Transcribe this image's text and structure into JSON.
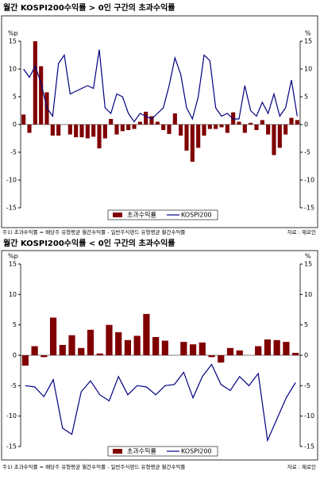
{
  "chart_data": [
    {
      "type": "bar_line",
      "title": "월간 KOSPI200수익률 > 0인 구간의 초과수익률",
      "y_label": "%p",
      "y2_label": "%",
      "categories": [
        null,
        null,
        null,
        null,
        null,
        null,
        null,
        null,
        null,
        null,
        null,
        null,
        null,
        null,
        null,
        null,
        null,
        null,
        null,
        null,
        null,
        null,
        null,
        null,
        null,
        null,
        null,
        null,
        null,
        null,
        null,
        null,
        null,
        null,
        null,
        null,
        null,
        null,
        null,
        null,
        null,
        null,
        null,
        null,
        null,
        null,
        null,
        null
      ],
      "series": [
        {
          "name": "초과수익률",
          "type": "bar",
          "color": "#800000",
          "values": [
            1.8,
            -1.5,
            15,
            10.5,
            5.8,
            -2,
            -2,
            0,
            -1.8,
            -2.3,
            -2.3,
            -2.5,
            -2.2,
            -4.3,
            -2.5,
            1,
            -1.8,
            -1.2,
            -1,
            -0.8,
            0.5,
            2.3,
            1.5,
            0.5,
            -1,
            -1.7,
            2,
            -2,
            -4.7,
            -6.7,
            -4.2,
            -2,
            -0.8,
            -0.8,
            -0.5,
            -1.5,
            2.2,
            0.5,
            -1.5,
            0.3,
            -1,
            0.8,
            -1.8,
            -5.5,
            -4.2,
            -1.8,
            1.2,
            0.8
          ]
        },
        {
          "name": "KOSPI200",
          "type": "line",
          "color": "#000080",
          "axis": "y2",
          "values": [
            10,
            8.5,
            10.5,
            7.5,
            3,
            1.5,
            11,
            12.5,
            5.5,
            6,
            6.5,
            7,
            6.5,
            13.5,
            3,
            2,
            5.5,
            5,
            2,
            0.5,
            2,
            1.5,
            1,
            2,
            3,
            7,
            12,
            9,
            3,
            1,
            5,
            12.5,
            11.5,
            3,
            1.5,
            2,
            1,
            1,
            7,
            2.5,
            1.5,
            4,
            2,
            5.5,
            1.5,
            3,
            8,
            1.5
          ]
        }
      ],
      "ylim": [
        -15,
        15
      ],
      "yticks": [
        -15,
        -10,
        -5,
        0,
        5,
        10,
        15
      ],
      "y2lim": [
        -15,
        15
      ],
      "y2ticks": [
        -15,
        -10,
        -5,
        0,
        5,
        10,
        15
      ],
      "note": "주1) 초과수익률 = 배당주 유형평균 월간수익률 - 일반주식펀드 유형평균 월간수익률",
      "source": "자료 : 제로인"
    },
    {
      "type": "bar_line",
      "title": "월간 KOSPI200수익률 < 0인 구간의 초과수익률",
      "y_label": "%p",
      "y2_label": "%",
      "categories": [
        null,
        null,
        null,
        null,
        null,
        null,
        null,
        null,
        null,
        null,
        null,
        null,
        null,
        null,
        null,
        null,
        null,
        null,
        null,
        null,
        null,
        null,
        null,
        null,
        null,
        null,
        null,
        null,
        null,
        null
      ],
      "series": [
        {
          "name": "초과수익률",
          "type": "bar",
          "color": "#800000",
          "values": [
            -1.7,
            1.5,
            -0.3,
            6.2,
            1.7,
            3.3,
            1.2,
            4.2,
            0.3,
            5,
            3.8,
            2.5,
            3.2,
            6.8,
            3,
            2.4,
            0,
            2.2,
            1.8,
            2.1,
            -0.3,
            -1.2,
            1.2,
            0.8,
            0,
            1.5,
            2.6,
            2.5,
            2.2,
            0.4
          ]
        },
        {
          "name": "KOSPI200",
          "type": "line",
          "color": "#000080",
          "axis": "y2",
          "values": [
            -5,
            -5.2,
            -6.8,
            -4,
            -12,
            -13,
            -6,
            -4.2,
            -6.5,
            -7.5,
            -3.5,
            -6.5,
            -5,
            -5.2,
            -6.5,
            -5,
            -4.8,
            -2.8,
            -7,
            -3.5,
            -1.5,
            -4.8,
            -5.8,
            -3.5,
            -5,
            -3,
            -14,
            -10.5,
            -7,
            -4.5
          ]
        }
      ],
      "ylim": [
        -15,
        15
      ],
      "yticks": [
        -15,
        -10,
        -5,
        0,
        5,
        10,
        15
      ],
      "y2lim": [
        -15,
        15
      ],
      "y2ticks": [
        -15,
        -10,
        -5,
        0,
        5,
        10,
        15
      ],
      "note": "주1) 초과수익률 = 배당주 유형평균 월간수익률 - 일반주식펀드 유형평균 월간수익률",
      "source": "자료 : 제로인"
    }
  ]
}
